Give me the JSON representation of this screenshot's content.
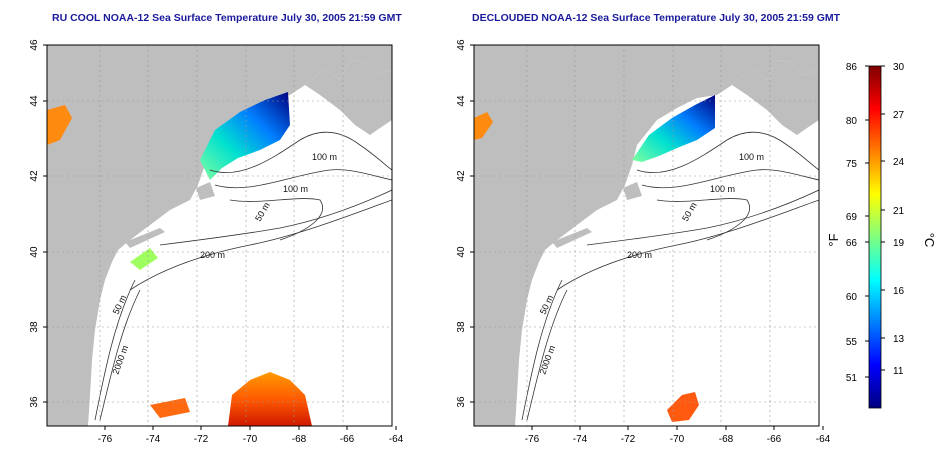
{
  "panels": [
    {
      "title": "RU COOL NOAA-12 Sea Surface Temperature July 30, 2005 21:59 GMT",
      "x_ticks": [
        "-76",
        "-74",
        "-72",
        "-70",
        "-68",
        "-66",
        "-64"
      ],
      "y_ticks": [
        "36",
        "38",
        "40",
        "42",
        "44",
        "46"
      ],
      "contour_labels": [
        "100 m",
        "100 m",
        "50 m",
        "200 m",
        "50 m",
        "2000 m"
      ]
    },
    {
      "title": "DECLOUDED NOAA-12 Sea Surface Temperature July 30, 2005 21:59 GMT",
      "x_ticks": [
        "-76",
        "-74",
        "-72",
        "-70",
        "-68",
        "-66",
        "-64"
      ],
      "y_ticks": [
        "36",
        "38",
        "40",
        "42",
        "44",
        "46"
      ],
      "contour_labels": [
        "100 m",
        "100 m",
        "50 m",
        "200 m",
        "50 m",
        "2000 m"
      ]
    }
  ],
  "colorbar": {
    "fahrenheit_ticks": [
      "86",
      "80",
      "75",
      "69",
      "66",
      "60",
      "55",
      "51"
    ],
    "celsius_ticks": [
      "30",
      "27",
      "24",
      "21",
      "19",
      "16",
      "13",
      "11"
    ],
    "fahrenheit_unit": "°F",
    "celsius_unit": "°C",
    "colors": [
      "#00007f",
      "#0000ff",
      "#007fff",
      "#00ffff",
      "#7fff7f",
      "#ffff00",
      "#ff7f00",
      "#ff0000",
      "#7f0000"
    ]
  }
}
